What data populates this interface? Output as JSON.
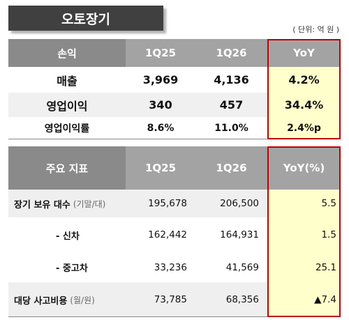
{
  "title": "오토장기",
  "unit": "( 단위: 억 원 )",
  "table1": {
    "header": [
      "손익",
      "1Q25",
      "1Q26",
      "YoY"
    ],
    "rows": [
      [
        "매출",
        "3,969",
        "4,136",
        "4.2%"
      ],
      [
        "영업이익",
        "340",
        "457",
        "34.4%"
      ],
      [
        "영업이익률",
        "8.6%",
        "11.0%",
        "2.4%p"
      ]
    ]
  },
  "table2": {
    "header": [
      "주요 지표",
      "1Q25",
      "1Q26",
      "YoY(%)"
    ],
    "rows": [
      [
        {
          "label": "장기 보유 대수",
          "note": "(기말/대)"
        },
        "195,678",
        "206,500",
        "5.5"
      ],
      [
        {
          "label": "- 신차"
        },
        "162,442",
        "164,931",
        "1.5"
      ],
      [
        {
          "label": "- 중고차"
        },
        "33,236",
        "41,569",
        "25.1"
      ],
      [
        {
          "label": "대당 사고비용",
          "note": "(월/원)"
        },
        "73,785",
        "68,356",
        "▲7.4"
      ]
    ]
  }
}
